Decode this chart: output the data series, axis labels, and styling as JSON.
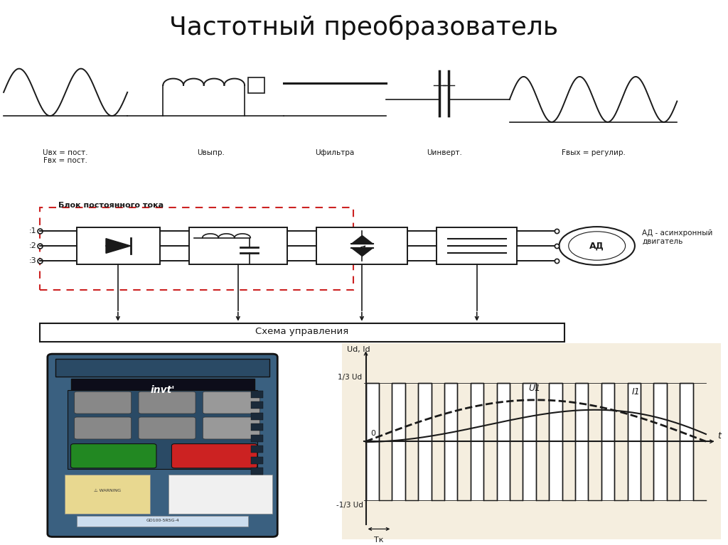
{
  "title": "Частотный преобразователь",
  "title_fontsize": 26,
  "background_color": "#ffffff",
  "top_labels": [
    "Uвх = пост.\nFвх = пост.",
    "Uвыпр.",
    "Uфильтра",
    "Uинверт.",
    "Fвых = регулир."
  ],
  "block_label": "Блок постоянного тока",
  "schematic_note": "АД - асинхронный\nдвигатель",
  "control_label": "Схема управления",
  "graph_ylabel": "Ud, Id",
  "graph_y1_label": "1/3 Ud",
  "graph_y2_label": "-1/3 Ud",
  "graph_u_label": "U1",
  "graph_i_label": "I1",
  "graph_tk_label": "Tк",
  "graph_t_label": "T",
  "graph_t_axis": "t",
  "line_color": "#1a1a1a",
  "rect_fill": "#f5eedf",
  "dashed_box_color": "#cc2222",
  "sym_positions_x": [
    0.9,
    2.8,
    4.5,
    6.2,
    8.2
  ]
}
